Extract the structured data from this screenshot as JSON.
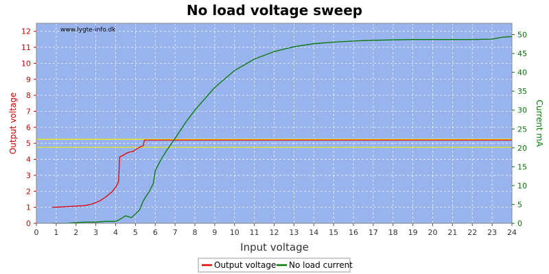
{
  "chart_data": {
    "type": "line",
    "title": "No load voltage sweep",
    "xlabel": "Input voltage",
    "ylabel_left": "Output voltage",
    "ylabel_right": "Current mA",
    "watermark": "www.lygte-info.dk",
    "xlim": [
      0,
      24
    ],
    "ylim_left": [
      0,
      12.5
    ],
    "ylim_right": [
      0,
      53
    ],
    "x_ticks": [
      0,
      1,
      2,
      3,
      4,
      5,
      6,
      7,
      8,
      9,
      10,
      11,
      12,
      13,
      14,
      15,
      16,
      17,
      18,
      19,
      20,
      21,
      22,
      23,
      24
    ],
    "y_left_ticks": [
      0,
      1,
      2,
      3,
      4,
      5,
      6,
      7,
      8,
      9,
      10,
      11,
      12
    ],
    "y_right_ticks": [
      0,
      5,
      10,
      15,
      20,
      25,
      30,
      35,
      40,
      45,
      50
    ],
    "grid": true,
    "legend_position": "bottom-center",
    "colors": {
      "background": "#99b4ec",
      "output_voltage": "#e00000",
      "no_load_current": "#007700",
      "reference_line": "#f0f000",
      "left_axis": "#cc0000",
      "right_axis": "#007700"
    },
    "reference_lines": [
      {
        "axis": "left",
        "y": 5.25
      },
      {
        "axis": "left",
        "y": 4.75
      }
    ],
    "series": [
      {
        "name": "Output voltage",
        "axis": "left",
        "x": [
          0.8,
          1.2,
          1.6,
          2.0,
          2.4,
          2.8,
          3.2,
          3.5,
          3.8,
          4.0,
          4.15,
          4.2,
          4.3,
          4.5,
          4.7,
          4.9,
          5.0,
          5.2,
          5.4,
          5.45,
          6,
          8,
          10,
          12,
          14,
          16,
          18,
          20,
          22,
          24
        ],
        "y": [
          1.0,
          1.02,
          1.05,
          1.08,
          1.1,
          1.2,
          1.4,
          1.65,
          1.95,
          2.25,
          2.6,
          4.15,
          4.2,
          4.35,
          4.45,
          4.5,
          4.6,
          4.75,
          4.85,
          5.2,
          5.2,
          5.2,
          5.2,
          5.2,
          5.2,
          5.2,
          5.2,
          5.2,
          5.2,
          5.2
        ]
      },
      {
        "name": "No load current",
        "axis": "right",
        "x": [
          0.8,
          1.5,
          2.0,
          2.5,
          3.0,
          3.5,
          4.0,
          4.2,
          4.5,
          4.8,
          5.0,
          5.2,
          5.4,
          5.7,
          5.9,
          6.0,
          6.3,
          6.6,
          7.0,
          7.5,
          8.0,
          8.5,
          9.0,
          10.0,
          11.0,
          12.0,
          13.0,
          14.0,
          15.0,
          16.0,
          17.0,
          18.0,
          19.0,
          20.0,
          21.0,
          22.0,
          23.0,
          23.5,
          24.0
        ],
        "y": [
          0,
          0,
          0.2,
          0.3,
          0.3,
          0.5,
          0.5,
          1.0,
          2.0,
          1.5,
          2.5,
          3.5,
          6.0,
          8.5,
          10.5,
          14.0,
          17.0,
          19.5,
          22.5,
          26.5,
          30.0,
          33.0,
          36.0,
          40.5,
          43.5,
          45.5,
          46.8,
          47.6,
          48.0,
          48.3,
          48.5,
          48.6,
          48.7,
          48.7,
          48.7,
          48.7,
          48.8,
          49.3,
          49.5
        ]
      }
    ]
  }
}
